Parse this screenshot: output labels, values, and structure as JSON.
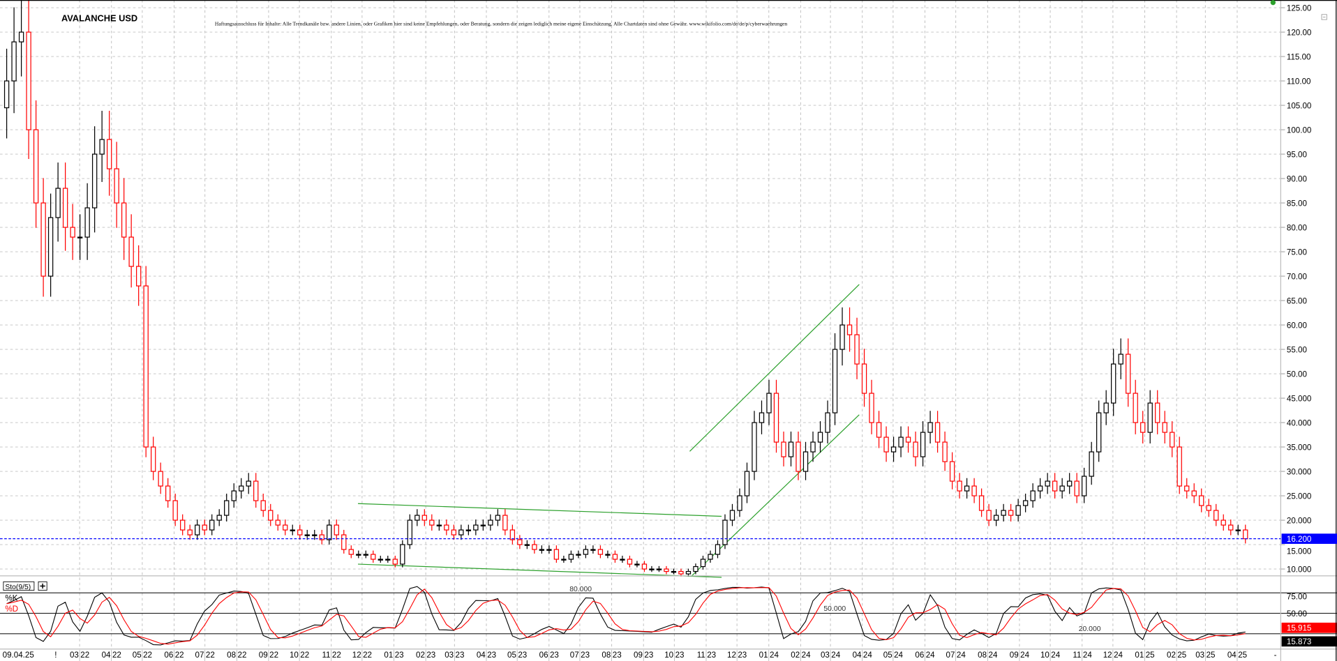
{
  "chart_data": {
    "type": "candlestick",
    "title": "AVALANCHE USD",
    "disclaimer": "Haftungsausschluss für Inhalte: Alle Trendkanäle bzw. andere Linien, oder Grafiken hier sind keine Empfehlungen, oder Beratung, sondern die zeigen lediglich meine eigene Einschätzung. Alle Chartdaten sind ohne Gewähr. www.wikifolio.com/de/de/p/cyberwaehrungen",
    "start_date": "2021-12-20",
    "end_date": "2025-04-09",
    "wick_pct": 6,
    "closes": [
      110,
      118,
      120,
      100,
      85,
      70,
      82,
      88,
      80,
      78,
      78,
      84,
      95,
      98,
      92,
      85,
      78,
      72,
      68,
      35,
      30,
      27,
      24,
      20,
      18,
      17,
      19,
      18,
      20,
      21,
      24,
      26,
      27,
      28,
      24,
      22,
      20,
      19,
      18,
      18,
      17,
      17,
      17,
      16,
      19,
      17,
      14,
      13,
      13,
      13,
      12,
      12,
      12,
      11,
      15,
      20,
      21,
      20,
      19,
      19,
      18,
      17,
      18,
      18,
      19,
      19,
      20,
      21,
      18,
      16,
      15,
      15,
      14,
      14,
      14,
      12,
      12,
      13,
      13,
      14,
      14,
      13,
      13,
      12,
      12,
      11,
      11,
      10,
      10,
      10,
      9.5,
      9.5,
      9,
      9.5,
      10.5,
      12,
      13,
      15,
      20,
      22,
      25,
      30,
      40,
      42,
      46,
      36,
      33,
      36,
      30,
      34,
      36,
      38,
      42,
      55,
      60,
      58,
      52,
      46,
      40,
      37,
      34,
      35,
      37,
      36,
      33,
      38,
      40,
      36,
      32,
      28,
      26,
      27,
      25,
      22,
      20,
      21,
      22,
      21,
      23,
      24,
      26,
      27,
      28,
      26,
      27,
      28,
      25,
      29,
      34,
      42,
      44,
      52,
      54,
      46,
      40,
      38,
      44,
      40,
      38,
      35,
      27,
      26,
      25,
      23,
      22,
      20,
      19,
      18,
      18,
      16.2
    ],
    "ylim": [
      10,
      125
    ],
    "y_ticks": [
      "125.00",
      "120.00",
      "115.00",
      "110.00",
      "105.00",
      "100.00",
      "95.00",
      "90.00",
      "85.00",
      "80.00",
      "75.00",
      "70.00",
      "65.00",
      "60.00",
      "55.00",
      "50.00",
      "45.000",
      "40.000",
      "35.000",
      "30.000",
      "25.000",
      "20.000",
      "15.000",
      "10.000"
    ],
    "y_tick_values": [
      125,
      120,
      115,
      110,
      105,
      100,
      95,
      90,
      85,
      80,
      75,
      70,
      65,
      60,
      55,
      50,
      45,
      40,
      35,
      30,
      25,
      20,
      15,
      10
    ],
    "last_price": {
      "value": 16.2,
      "label": "16.200"
    },
    "trend_lines": [
      {
        "from": [
          "2022-11-27",
          23.4
        ],
        "to": [
          "2023-11-16",
          20.8
        ]
      },
      {
        "from": [
          "2022-11-27",
          11.0
        ],
        "to": [
          "2023-11-16",
          8.3
        ]
      },
      {
        "from": [
          "2023-10-16",
          34.1
        ],
        "to": [
          "2024-03-29",
          68.3
        ]
      },
      {
        "from": [
          "2023-10-18",
          8.6
        ],
        "to": [
          "2024-03-29",
          41.6
        ]
      }
    ],
    "x_labels": {
      "first": "09.04.25",
      "marker": "!",
      "end_marker": "-",
      "months": [
        "03 22",
        "04 22",
        "05 22",
        "06 22",
        "07 22",
        "08 22",
        "09 22",
        "10 22",
        "11 22",
        "12 22",
        "01 23",
        "02 23",
        "03 23",
        "04 23",
        "05 23",
        "06 23",
        "07 23",
        "08 23",
        "09 23",
        "10 23",
        "11 23",
        "12 23",
        "01 24",
        "02 24",
        "03 24",
        "04 24",
        "05 24",
        "06 24",
        "07 24",
        "08 24",
        "09 24",
        "10 24",
        "11 24",
        "12 24",
        "01 25",
        "02 25",
        "03 25",
        "04 25"
      ]
    },
    "colors": {
      "up": "#000000",
      "down": "#ff0000",
      "trend": "#2ca02c",
      "last_line": "#0000ff",
      "grid": "#c0c0c0"
    },
    "indicator": {
      "name": "Sto(9/5)",
      "k_label": "%K",
      "d_label": "%D",
      "levels": [
        80,
        50,
        20
      ],
      "level_labels": [
        "80.000",
        "50.000",
        "20.000"
      ],
      "axis_ticks": [
        "75.00",
        "50.00"
      ],
      "axis_tick_values": [
        75,
        50
      ],
      "last_d": "15.915",
      "last_k": "15.873"
    }
  }
}
